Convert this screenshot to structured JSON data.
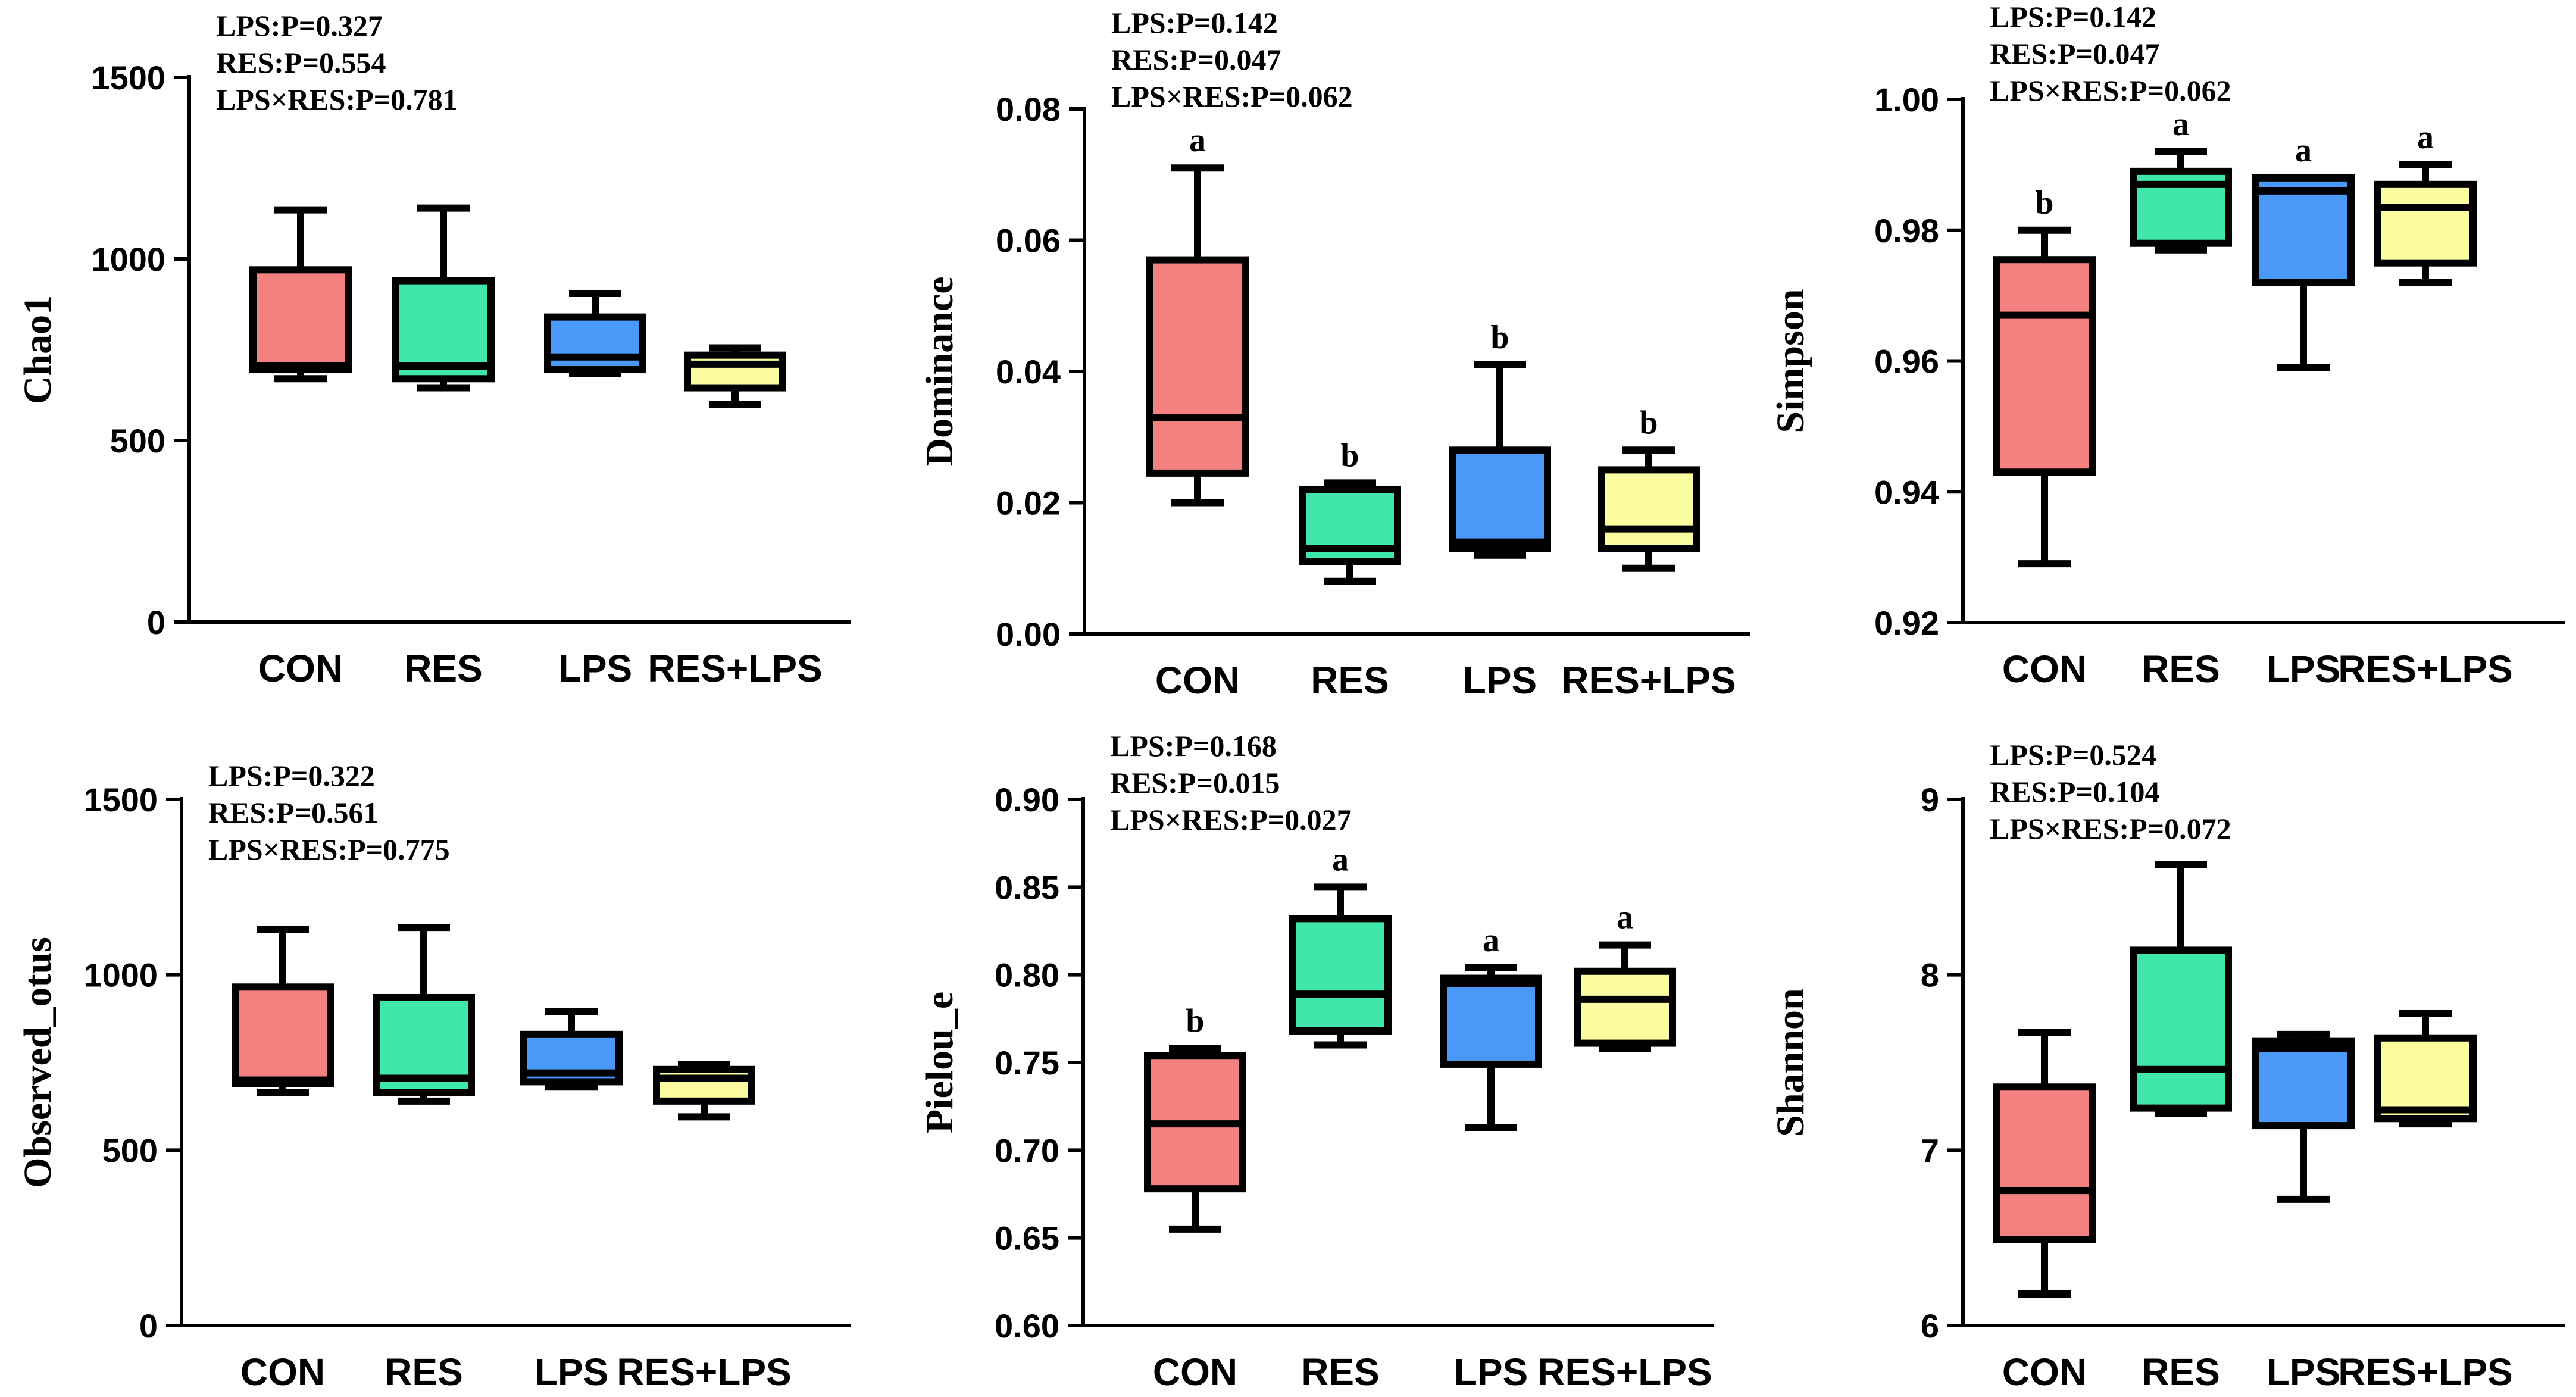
{
  "colors": {
    "CON": "#f48080",
    "RES": "#3fe8a8",
    "LPS": "#4a98f8",
    "RES+LPS": "#fbfba0",
    "stroke": "#000000"
  },
  "chart_data": [
    {
      "id": "chao1",
      "type": "box",
      "ylabel": "Chao1",
      "ylim": [
        0,
        1500
      ],
      "yticks": [
        0,
        500,
        1000,
        1500
      ],
      "categories": [
        "CON",
        "RES",
        "LPS",
        "RES+LPS"
      ],
      "boxes": [
        {
          "min": 670,
          "q1": 695,
          "median": 705,
          "q3": 970,
          "max": 1135
        },
        {
          "min": 645,
          "q1": 670,
          "median": 705,
          "q3": 940,
          "max": 1140
        },
        {
          "min": 685,
          "q1": 695,
          "median": 730,
          "q3": 840,
          "max": 905
        },
        {
          "min": 600,
          "q1": 645,
          "median": 710,
          "q3": 735,
          "max": 755
        }
      ],
      "letters": [
        "",
        "",
        "",
        ""
      ],
      "stats": [
        "LPS:P=0.327",
        "RES:P=0.554",
        "LPS×RES:P=0.781"
      ]
    },
    {
      "id": "dominance",
      "type": "box",
      "ylabel": "Dominance",
      "ylim": [
        0,
        0.08
      ],
      "yticks": [
        0.0,
        0.02,
        0.04,
        0.06,
        0.08
      ],
      "ytick_labels": [
        "0.00",
        "0.02",
        "0.04",
        "0.06",
        "0.08"
      ],
      "categories": [
        "CON",
        "RES",
        "LPS",
        "RES+LPS"
      ],
      "boxes": [
        {
          "min": 0.02,
          "q1": 0.0245,
          "median": 0.033,
          "q3": 0.057,
          "max": 0.071
        },
        {
          "min": 0.008,
          "q1": 0.011,
          "median": 0.013,
          "q3": 0.022,
          "max": 0.023
        },
        {
          "min": 0.012,
          "q1": 0.013,
          "median": 0.014,
          "q3": 0.028,
          "max": 0.041
        },
        {
          "min": 0.01,
          "q1": 0.013,
          "median": 0.016,
          "q3": 0.025,
          "max": 0.028
        }
      ],
      "letters": [
        "a",
        "b",
        "b",
        "b"
      ],
      "stats": [
        "LPS:P=0.142",
        "RES:P=0.047",
        "LPS×RES:P=0.062"
      ]
    },
    {
      "id": "simpson",
      "type": "box",
      "ylabel": "Simpson",
      "ylim": [
        0.92,
        1.0
      ],
      "yticks": [
        0.92,
        0.94,
        0.96,
        0.98,
        1.0
      ],
      "ytick_labels": [
        "0.92",
        "0.94",
        "0.96",
        "0.98",
        "1.00"
      ],
      "categories": [
        "CON",
        "RES",
        "LPS",
        "RES+LPS"
      ],
      "boxes": [
        {
          "min": 0.929,
          "q1": 0.943,
          "median": 0.967,
          "q3": 0.9755,
          "max": 0.98
        },
        {
          "min": 0.977,
          "q1": 0.978,
          "median": 0.987,
          "q3": 0.989,
          "max": 0.992
        },
        {
          "min": 0.959,
          "q1": 0.972,
          "median": 0.986,
          "q3": 0.988,
          "max": 0.988
        },
        {
          "min": 0.972,
          "q1": 0.975,
          "median": 0.9835,
          "q3": 0.987,
          "max": 0.99
        }
      ],
      "letters": [
        "b",
        "a",
        "a",
        "a"
      ],
      "stats": [
        "LPS:P=0.142",
        "RES:P=0.047",
        "LPS×RES:P=0.062"
      ]
    },
    {
      "id": "observed-otus",
      "type": "box",
      "ylabel": "Observed_otus",
      "ylim": [
        0,
        1500
      ],
      "yticks": [
        0,
        500,
        1000,
        1500
      ],
      "categories": [
        "CON",
        "RES",
        "LPS",
        "RES+LPS"
      ],
      "boxes": [
        {
          "min": 665,
          "q1": 690,
          "median": 700,
          "q3": 965,
          "max": 1130
        },
        {
          "min": 640,
          "q1": 665,
          "median": 705,
          "q3": 935,
          "max": 1135
        },
        {
          "min": 680,
          "q1": 695,
          "median": 720,
          "q3": 830,
          "max": 895
        },
        {
          "min": 595,
          "q1": 640,
          "median": 705,
          "q3": 730,
          "max": 745
        }
      ],
      "letters": [
        "",
        "",
        "",
        ""
      ],
      "stats": [
        "LPS:P=0.322",
        "RES:P=0.561",
        "LPS×RES:P=0.775"
      ]
    },
    {
      "id": "pielou-e",
      "type": "box",
      "ylabel": "Pielou_e",
      "ylim": [
        0.6,
        0.9
      ],
      "yticks": [
        0.6,
        0.65,
        0.7,
        0.75,
        0.8,
        0.85,
        0.9
      ],
      "ytick_labels": [
        "0.60",
        "0.65",
        "0.70",
        "0.75",
        "0.80",
        "0.85",
        "0.90"
      ],
      "categories": [
        "CON",
        "RES",
        "LPS",
        "RES+LPS"
      ],
      "boxes": [
        {
          "min": 0.655,
          "q1": 0.678,
          "median": 0.715,
          "q3": 0.754,
          "max": 0.758
        },
        {
          "min": 0.76,
          "q1": 0.768,
          "median": 0.789,
          "q3": 0.832,
          "max": 0.85
        },
        {
          "min": 0.713,
          "q1": 0.749,
          "median": 0.795,
          "q3": 0.798,
          "max": 0.804
        },
        {
          "min": 0.758,
          "q1": 0.761,
          "median": 0.786,
          "q3": 0.802,
          "max": 0.817
        }
      ],
      "letters": [
        "b",
        "a",
        "a",
        "a"
      ],
      "stats": [
        "LPS:P=0.168",
        "RES:P=0.015",
        "LPS×RES:P=0.027"
      ]
    },
    {
      "id": "shannon",
      "type": "box",
      "ylabel": "Shannon",
      "ylim": [
        6,
        9
      ],
      "yticks": [
        6,
        7,
        8,
        9
      ],
      "categories": [
        "CON",
        "RES",
        "LPS",
        "RES+LPS"
      ],
      "boxes": [
        {
          "min": 6.18,
          "q1": 6.49,
          "median": 6.77,
          "q3": 7.36,
          "max": 7.67
        },
        {
          "min": 7.21,
          "q1": 7.24,
          "median": 7.46,
          "q3": 8.14,
          "max": 8.63
        },
        {
          "min": 6.72,
          "q1": 7.14,
          "median": 7.58,
          "q3": 7.62,
          "max": 7.66
        },
        {
          "min": 7.15,
          "q1": 7.18,
          "median": 7.23,
          "q3": 7.64,
          "max": 7.78
        }
      ],
      "letters": [
        "",
        "",
        "",
        ""
      ],
      "stats": [
        "LPS:P=0.524",
        "RES:P=0.104",
        "LPS×RES:P=0.072"
      ]
    }
  ]
}
